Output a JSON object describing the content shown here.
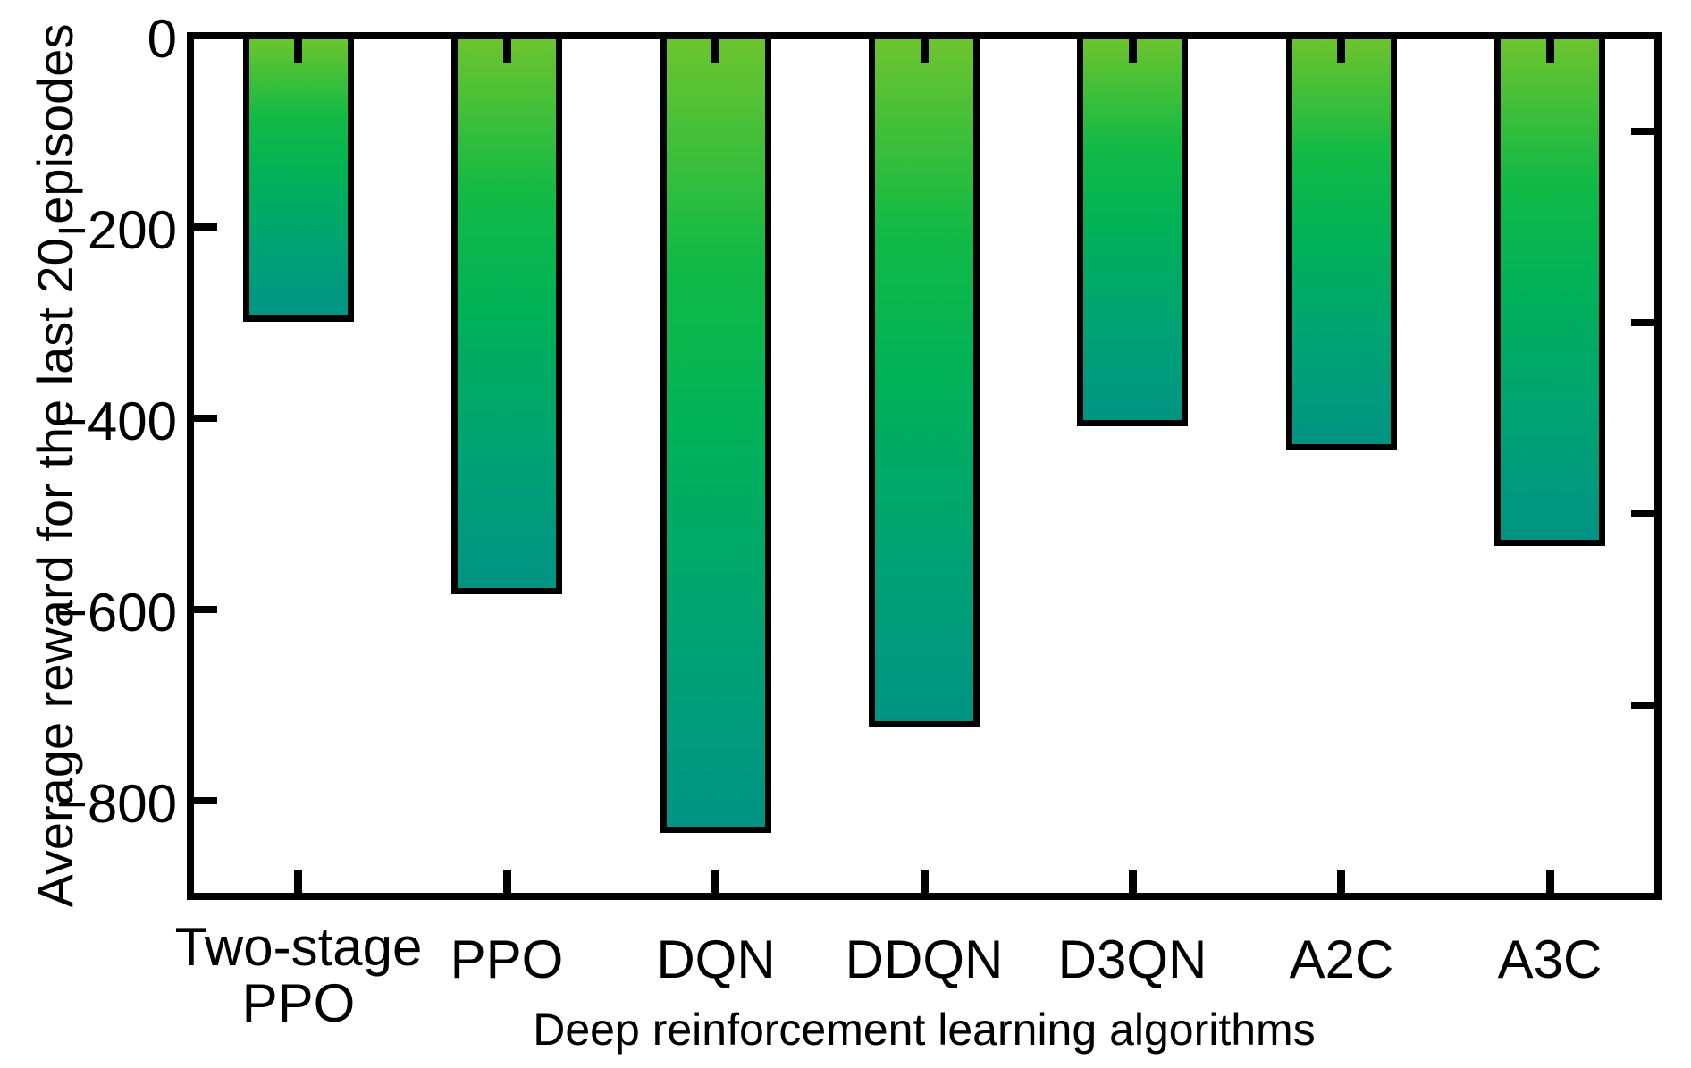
{
  "chart_data": {
    "type": "bar",
    "title": "",
    "xlabel": "Deep reinforcement learning algorithms",
    "ylabel": "Average reward for the last 20 episodes",
    "categories": [
      "Two-stage\nPPO",
      "PPO",
      "DQN",
      "DDQN",
      "D3QN",
      "A2C",
      "A3C"
    ],
    "values": [
      -295,
      -580,
      -830,
      -720,
      -405,
      -430,
      -530
    ],
    "ylim": [
      -900,
      0
    ],
    "yticks_left": [
      0,
      -200,
      -400,
      -600,
      -800
    ],
    "ytick_labels": [
      "0",
      "−200",
      "−400",
      "−600",
      "−800"
    ],
    "yticks_right": [
      -100,
      -300,
      -500,
      -700
    ],
    "grid": false,
    "legend": null,
    "bar_border_color": "#000000",
    "frame_color": "#000000",
    "background_color": "#ffffff",
    "bar_gradient": [
      {
        "color": "#6cc42e",
        "pos": 0
      },
      {
        "color": "#12ba45",
        "pos": 28
      },
      {
        "color": "#00b158",
        "pos": 50
      },
      {
        "color": "#00a473",
        "pos": 74
      },
      {
        "color": "#009383",
        "pos": 100
      }
    ]
  }
}
